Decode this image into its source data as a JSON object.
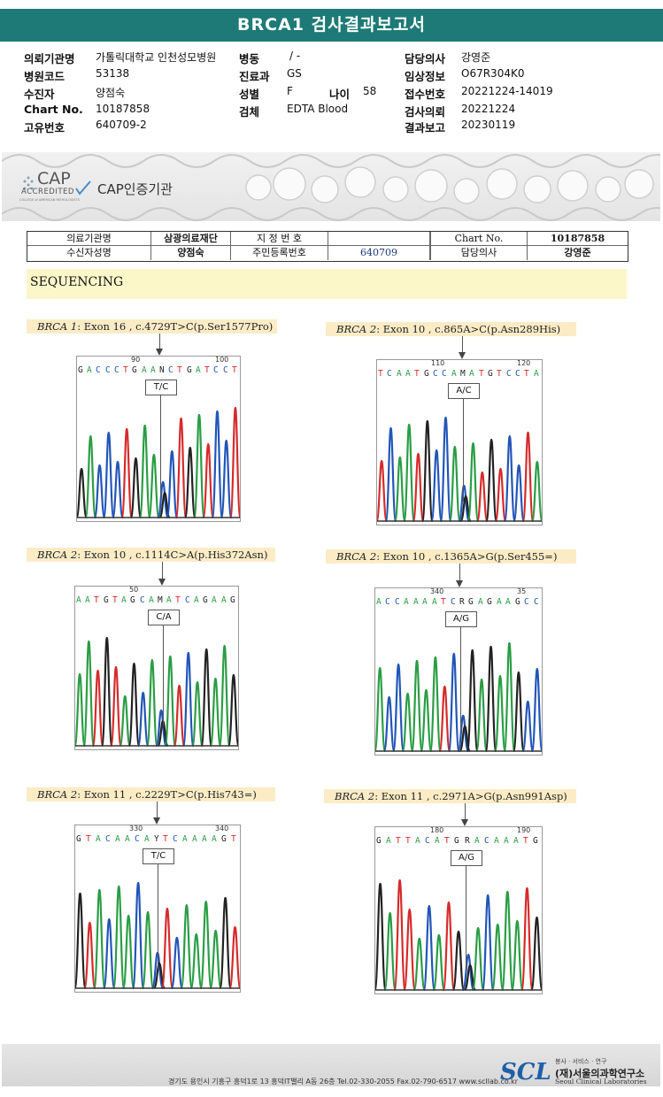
{
  "title": "BRCA1 검사결과보고서",
  "header": {
    "rows": [
      {
        "l1": "의뢰기관명",
        "v1": "가톨릭대학교 인천성모병원",
        "l2": "병동",
        "v2": "/ -",
        "l4": "담당의사",
        "v4": "강영준"
      },
      {
        "l1": "병원코드",
        "v1": "53138",
        "l2": "진료과",
        "v2": "GS",
        "l4": "임상정보",
        "v4": "O67R304K0"
      },
      {
        "l1": "수진자",
        "v1": "양점숙",
        "l2": "성별",
        "v2": "F",
        "l3": "나이",
        "v3": "58",
        "l4": "접수번호",
        "v4": "20221224-14019"
      },
      {
        "l1": "Chart No.",
        "v1": "10187858",
        "l2": "검체",
        "v2": "EDTA Blood",
        "l4": "검사의뢰",
        "v4": "20221224"
      },
      {
        "l1": "고유번호",
        "v1": "640709-2",
        "l4": "결과보고",
        "v4": "20230119"
      }
    ]
  },
  "banner": {
    "cap_big": "CAP",
    "cap_accredited": "ACCREDITED",
    "cap_college": "COLLEGE of AMERICAN PATHOLOGISTS",
    "label": "CAP인증기관"
  },
  "info_table": {
    "institution_label": "의료기관명",
    "institution_value": "삼광의료재단",
    "designation_label": "지 정 번 호",
    "chart_label": "Chart No.",
    "chart_value": "10187858",
    "patient_label": "수신자성명",
    "patient_value": "양점숙",
    "rrn_label": "주민등록번호",
    "rrn_value": "640709",
    "doctor_label": "담당의사",
    "doctor_value": "강영준"
  },
  "section_title": "SEQUENCING",
  "variants": [
    {
      "gene": "BRCA 1",
      "desc": ": Exon 16 , c.4729T>C(p.Ser1577Pro)",
      "seq": "GACCCTGAANCTGATCCT",
      "pos1": "90",
      "pos2": "100",
      "genotype": "T/C"
    },
    {
      "gene": "BRCA 2",
      "desc": ": Exon 10 , c.865A>C(p.Asn289His)",
      "seq": "TCAATGCCAMATGTCCTA",
      "pos1": "110",
      "pos2": "120",
      "genotype": "A/C"
    },
    {
      "gene": "BRCA 2",
      "desc": ": Exon 10 , c.1114C>A(p.His372Asn)",
      "seq": "AATGTAGCAMATCAGAAG",
      "pos1": "50",
      "pos2": "",
      "genotype": "C/A"
    },
    {
      "gene": "BRCA 2",
      "desc": ": Exon 10 , c.1365A>G(p.Ser455=)",
      "seq": "ACCAAAATCRGAGAAGCC",
      "pos1": "340",
      "pos2": "35",
      "genotype": "A/G"
    },
    {
      "gene": "BRCA 2",
      "desc": ": Exon 11 , c.2229T>C(p.His743=)",
      "seq": "GTACAACAYTCAAAAGT",
      "pos1": "330",
      "pos2": "340",
      "genotype": "T/C"
    },
    {
      "gene": "BRCA 2",
      "desc": ": Exon 11 , c.2971A>G(p.Asn991Asp)",
      "seq": "GATTACATGRACAAATG",
      "pos1": "180",
      "pos2": "190",
      "genotype": "A/G"
    }
  ],
  "footer": {
    "address": "경기도 용인시 기흥구 흥덕1로 13 흥덕IT밸리 A동 26층  Tel.02-330-2055  Fax.02-790-6517  www.scllab.co.kr",
    "logo": "SCL",
    "tagline": "봉사 · 서비스 · 연구",
    "name_kr": "(재)서울의과학연구소",
    "name_en": "Seoul Clinical Laboratories"
  },
  "colors": {
    "header": "#1e7a76",
    "A": "#2a9d45",
    "C": "#2255b8",
    "G": "#222222",
    "T": "#d62b2b"
  }
}
